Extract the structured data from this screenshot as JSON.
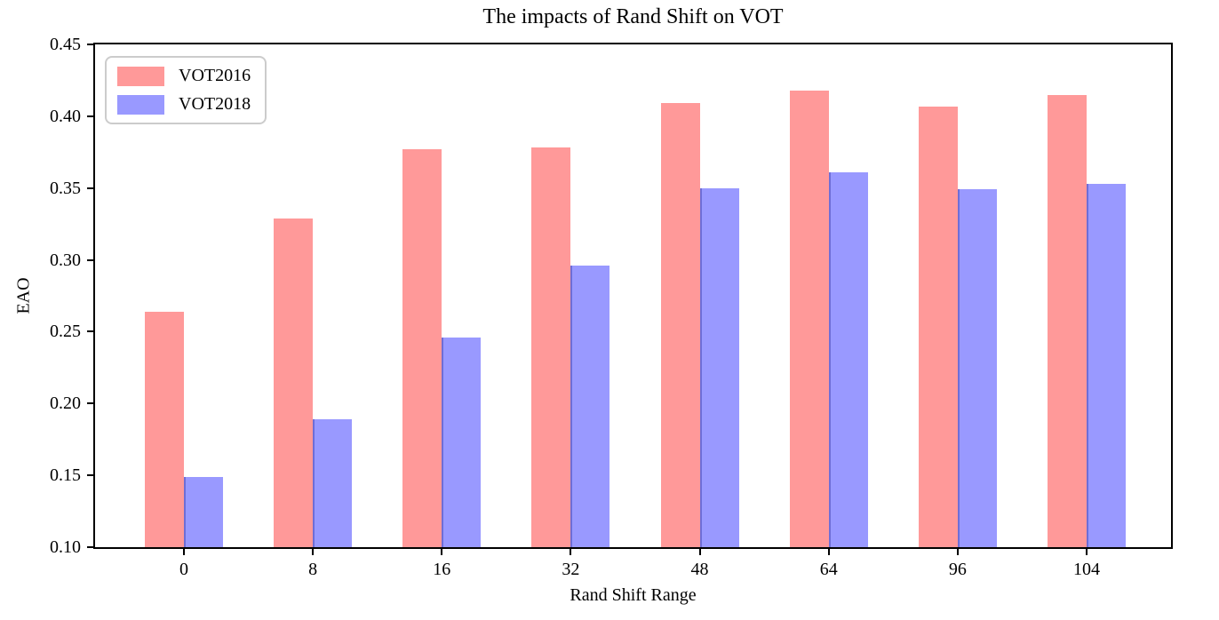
{
  "figure": {
    "title": "The impacts of Rand Shift on VOT",
    "xlabel": "Rand Shift Range",
    "ylabel": "EAO"
  },
  "legend": {
    "items": [
      {
        "label": "VOT2016",
        "color": "#ff9999"
      },
      {
        "label": "VOT2018",
        "color": "#9999ff"
      }
    ]
  },
  "chart_data": {
    "type": "bar",
    "title": "The impacts of Rand Shift on VOT",
    "xlabel": "Rand Shift Range",
    "ylabel": "EAO",
    "categories": [
      "0",
      "8",
      "16",
      "32",
      "48",
      "64",
      "96",
      "104"
    ],
    "series": [
      {
        "name": "VOT2016",
        "color": "#ff9999",
        "values": [
          0.264,
          0.329,
          0.377,
          0.378,
          0.409,
          0.418,
          0.407,
          0.415
        ]
      },
      {
        "name": "VOT2018",
        "color": "#9999ff",
        "values": [
          0.149,
          0.189,
          0.246,
          0.296,
          0.35,
          0.361,
          0.349,
          0.353
        ]
      }
    ],
    "ylim": [
      0.1,
      0.45
    ],
    "ytick_step": 0.05,
    "ytick_labels": [
      "0.10",
      "0.15",
      "0.20",
      "0.25",
      "0.30",
      "0.35",
      "0.40",
      "0.45"
    ],
    "grid": false,
    "legend_position": "upper left",
    "bar_seam_color": "#6e6ed7",
    "spine_color": "#000000"
  }
}
